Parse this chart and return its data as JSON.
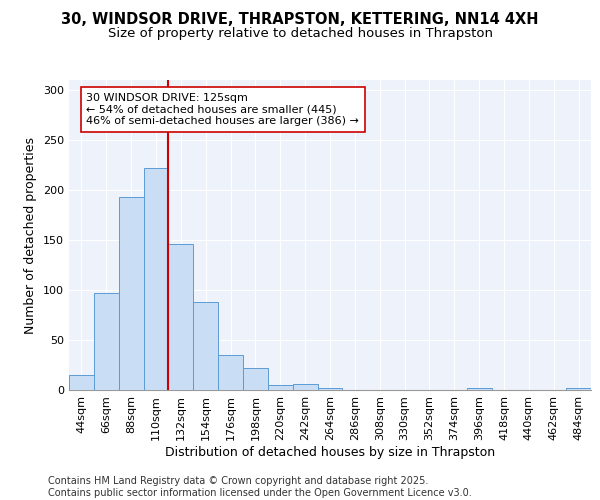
{
  "title_line1": "30, WINDSOR DRIVE, THRAPSTON, KETTERING, NN14 4XH",
  "title_line2": "Size of property relative to detached houses in Thrapston",
  "xlabel": "Distribution of detached houses by size in Thrapston",
  "ylabel": "Number of detached properties",
  "footer_line1": "Contains HM Land Registry data © Crown copyright and database right 2025.",
  "footer_line2": "Contains public sector information licensed under the Open Government Licence v3.0.",
  "annotation_title": "30 WINDSOR DRIVE: 125sqm",
  "annotation_line2": "← 54% of detached houses are smaller (445)",
  "annotation_line3": "46% of semi-detached houses are larger (386) →",
  "bar_categories": [
    "44sqm",
    "66sqm",
    "88sqm",
    "110sqm",
    "132sqm",
    "154sqm",
    "176sqm",
    "198sqm",
    "220sqm",
    "242sqm",
    "264sqm",
    "286sqm",
    "308sqm",
    "330sqm",
    "352sqm",
    "374sqm",
    "396sqm",
    "418sqm",
    "440sqm",
    "462sqm",
    "484sqm"
  ],
  "bar_values": [
    15,
    97,
    193,
    222,
    146,
    88,
    35,
    22,
    5,
    6,
    2,
    0,
    0,
    0,
    0,
    0,
    2,
    0,
    0,
    0,
    2
  ],
  "bar_color": "#c9ddf5",
  "bar_edge_color": "#5b9bd5",
  "vline_color": "#cc0000",
  "vline_x": 3.5,
  "background_color": "#eef2fb",
  "grid_color": "#ffffff",
  "ylim": [
    0,
    310
  ],
  "yticks": [
    0,
    50,
    100,
    150,
    200,
    250,
    300
  ],
  "title_fontsize": 10.5,
  "subtitle_fontsize": 9.5,
  "axis_label_fontsize": 9,
  "tick_fontsize": 8,
  "annotation_fontsize": 8,
  "footer_fontsize": 7
}
